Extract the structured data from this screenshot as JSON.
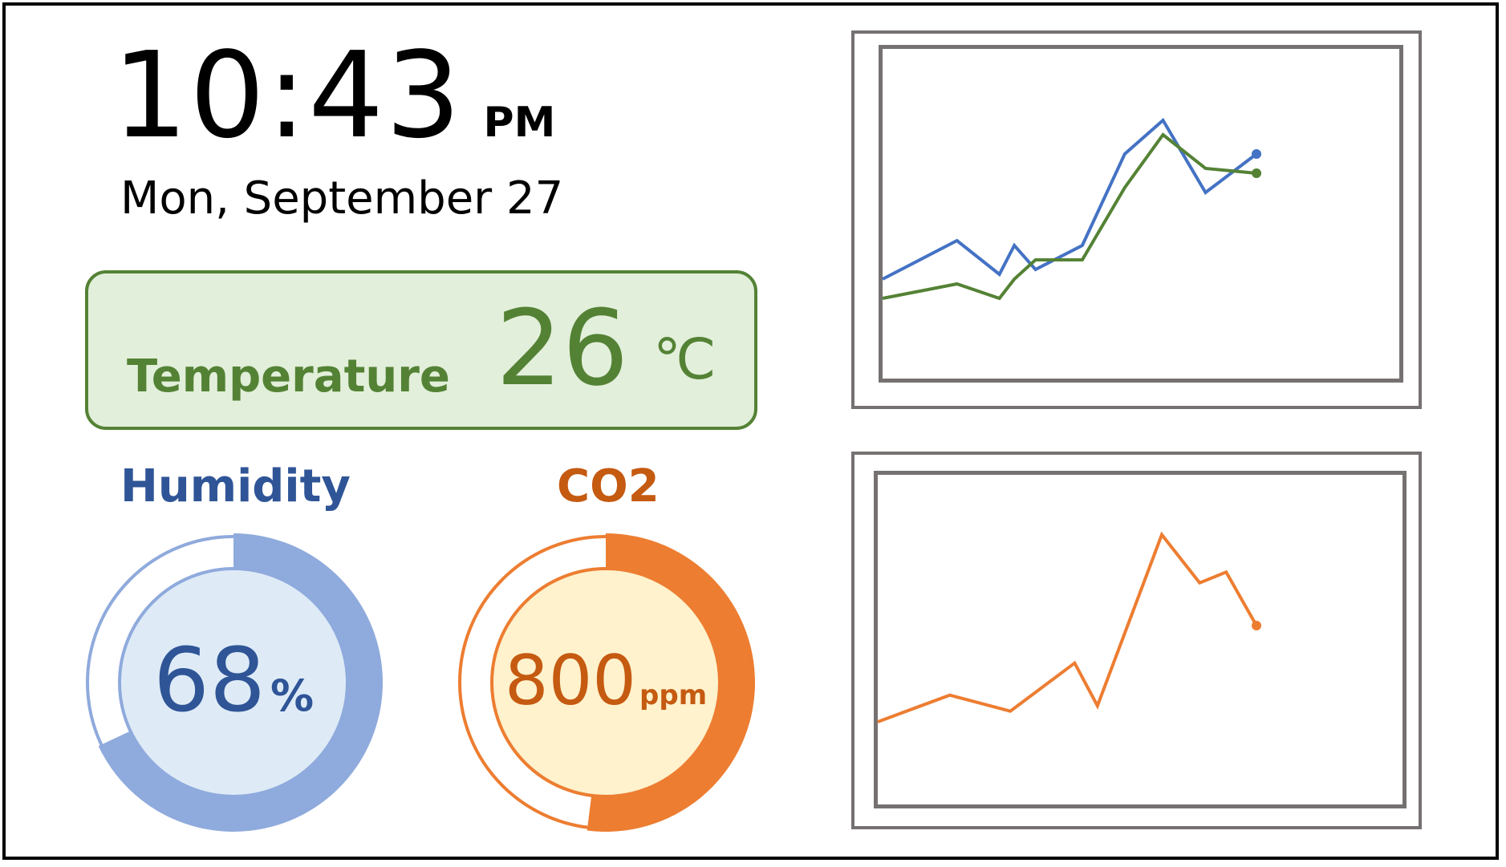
{
  "clock": {
    "time": "10:43",
    "ampm": "PM",
    "date": "Mon, September 27"
  },
  "temperature": {
    "label": "Temperature",
    "value": "26",
    "unit": "℃",
    "color": "#548235",
    "background": "#e2efda"
  },
  "humidity": {
    "label": "Humidity",
    "value": "68",
    "unit": "%",
    "fraction": 0.68,
    "colors": {
      "text": "#2f5597",
      "ring": "#8faadc",
      "fill": "#deebf7"
    }
  },
  "co2": {
    "label": "CO2",
    "value": "800",
    "unit": "ppm",
    "fraction": 0.52,
    "colors": {
      "text": "#c55a11",
      "ring": "#ed7d31",
      "fill": "#fff2cc"
    }
  },
  "chart_data": [
    {
      "type": "line",
      "title": "",
      "xlabel": "",
      "ylabel": "",
      "x": [
        0,
        1.75,
        2.75,
        3.1,
        3.6,
        4.7,
        5.7,
        6.6,
        7.6,
        8.8
      ],
      "series": [
        {
          "color": "#4472c4",
          "values": [
            1.2,
            2.0,
            1.3,
            1.9,
            1.4,
            1.9,
            3.8,
            4.5,
            3.0,
            3.8
          ]
        },
        {
          "color": "#548235",
          "values": [
            0.8,
            1.1,
            0.8,
            1.2,
            1.6,
            1.6,
            3.1,
            4.2,
            3.5,
            3.4
          ]
        }
      ],
      "ylim": [
        0,
        5
      ]
    },
    {
      "type": "line",
      "title": "",
      "xlabel": "",
      "ylabel": "",
      "x": [
        0,
        1.9,
        3.5,
        5.2,
        5.8,
        7.5,
        8.5,
        9.2,
        10.0
      ],
      "series": [
        {
          "color": "#ed7d31",
          "values": [
            1.5,
            2.0,
            1.7,
            2.6,
            1.8,
            5.0,
            4.1,
            4.3,
            3.3
          ]
        }
      ],
      "ylim": [
        0,
        6
      ]
    }
  ]
}
